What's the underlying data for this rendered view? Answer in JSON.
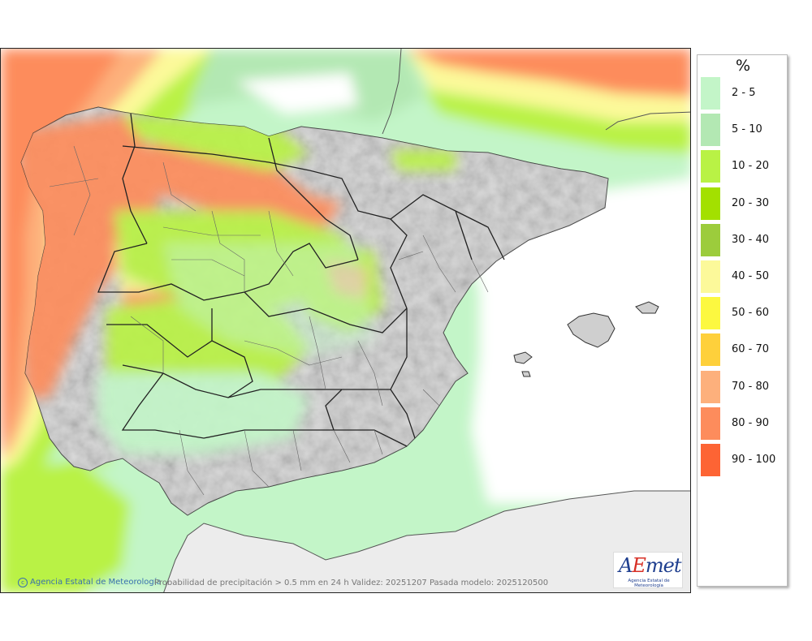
{
  "legend": {
    "title": "%",
    "items": [
      {
        "label": "2 - 5",
        "color": "#c3f5c8"
      },
      {
        "label": "5 - 10",
        "color": "#b3e8b3"
      },
      {
        "label": "10 - 20",
        "color": "#b9f245"
      },
      {
        "label": "20 - 30",
        "color": "#a3e000"
      },
      {
        "label": "30 - 40",
        "color": "#9ccc3c"
      },
      {
        "label": "40 - 50",
        "color": "#fcf99a"
      },
      {
        "label": "50 - 60",
        "color": "#fcf840"
      },
      {
        "label": "60 - 70",
        "color": "#fed03b"
      },
      {
        "label": "70 - 80",
        "color": "#fdb07c"
      },
      {
        "label": "80 - 90",
        "color": "#fd8c5c"
      },
      {
        "label": "90 - 100",
        "color": "#fd6434"
      }
    ]
  },
  "footer": {
    "agency": "Agencia Estatal de Meteorología",
    "caption": "Probabilidad de precipitación > 0.5 mm en 24 h Validez: 20251207 Pasada modelo: 2025120500"
  },
  "logo": {
    "word": "AEmet",
    "subtitle": "Agencia Estatal de Meteorología"
  },
  "map": {
    "land_color": "#cfcfcf",
    "sea_color": "#ffffff",
    "africa_color": "#ececec"
  }
}
